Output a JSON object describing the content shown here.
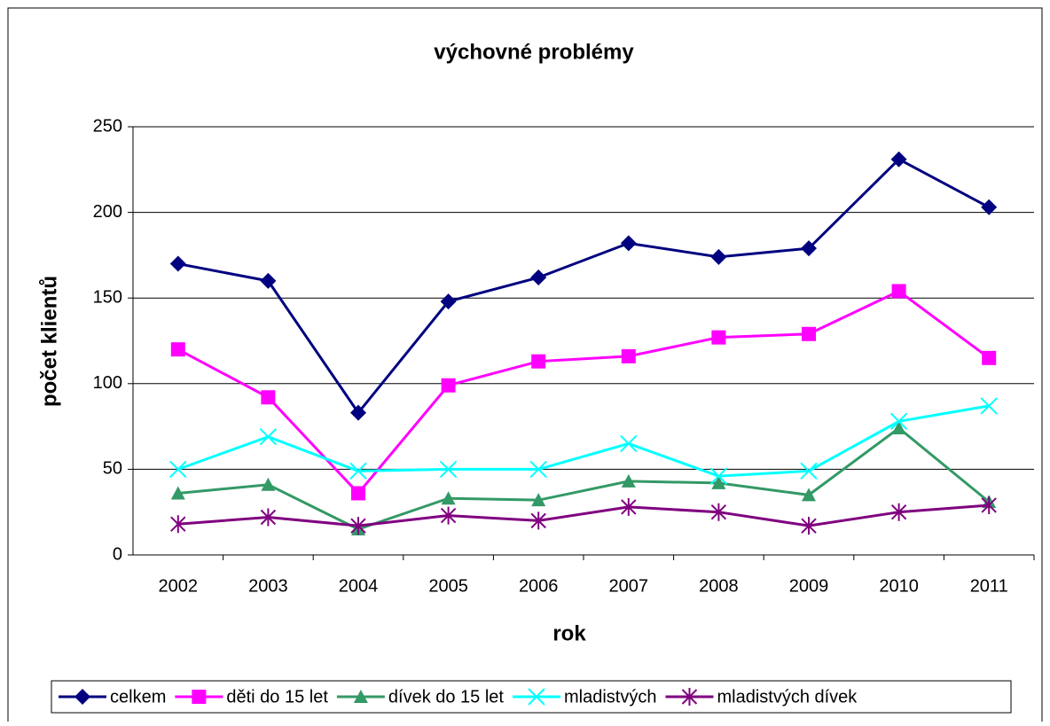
{
  "chart_data": {
    "type": "line",
    "title": "výchovné problémy",
    "x_label": "rok",
    "y_label": "počet klientů",
    "categories": [
      "2002",
      "2003",
      "2004",
      "2005",
      "2006",
      "2007",
      "2008",
      "2009",
      "2010",
      "2011"
    ],
    "series": [
      {
        "name": "celkem",
        "color": "#000080",
        "marker": "diamond",
        "values": [
          170,
          160,
          83,
          148,
          162,
          182,
          174,
          179,
          231,
          203
        ]
      },
      {
        "name": "děti do 15 let",
        "color": "#ff00ff",
        "marker": "square",
        "values": [
          120,
          92,
          36,
          99,
          113,
          116,
          127,
          129,
          154,
          115
        ]
      },
      {
        "name": "dívek do 15 let",
        "color": "#339966",
        "marker": "triangle",
        "values": [
          36,
          41,
          15,
          33,
          32,
          43,
          42,
          35,
          74,
          31
        ]
      },
      {
        "name": "mladistvých",
        "color": "#00ffff",
        "marker": "x",
        "values": [
          50,
          69,
          49,
          50,
          50,
          65,
          46,
          49,
          78,
          87
        ]
      },
      {
        "name": "mladistvých dívek",
        "color": "#800080",
        "marker": "star",
        "values": [
          18,
          22,
          17,
          23,
          20,
          28,
          25,
          17,
          25,
          29
        ]
      }
    ],
    "ylim": [
      0,
      250
    ],
    "yticks": [
      0,
      50,
      100,
      150,
      200,
      250
    ],
    "grid": true,
    "legend": "bottom"
  }
}
